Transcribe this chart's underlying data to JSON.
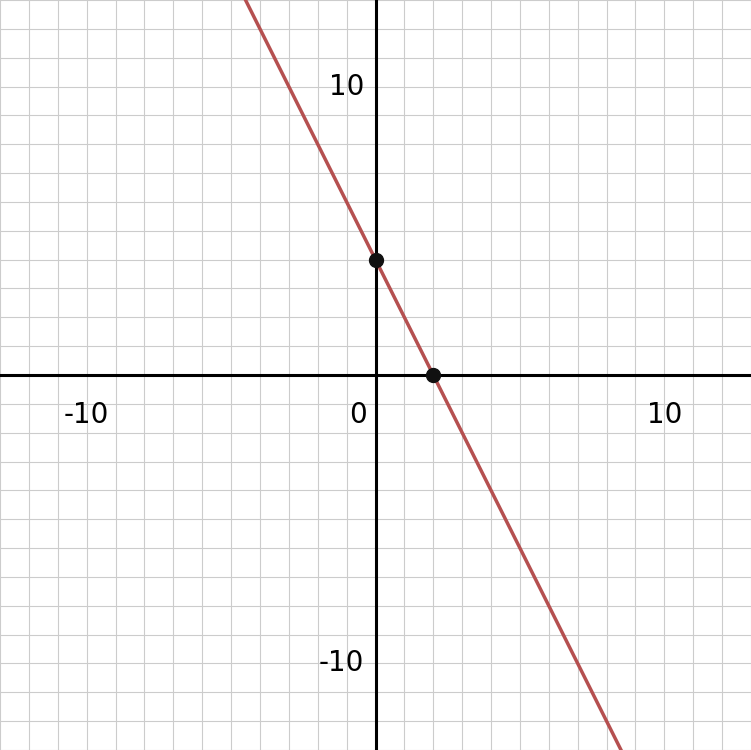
{
  "xlim": [
    -13,
    13
  ],
  "ylim": [
    -13,
    13
  ],
  "display_xlim": [
    -11.5,
    11.5
  ],
  "display_ylim": [
    -11.5,
    11.5
  ],
  "xticks_labeled": [
    -10,
    0,
    10
  ],
  "yticks_labeled": [
    -10,
    10
  ],
  "grid_step": 1,
  "line_slope": -2,
  "line_intercept": 4,
  "line_color": "#b55050",
  "line_width": 2.5,
  "points": [
    [
      0,
      4
    ],
    [
      2,
      0
    ]
  ],
  "point_color": "#111111",
  "point_size": 100,
  "background_color": "#ffffff",
  "axis_color": "#000000",
  "grid_color": "#cccccc",
  "tick_label_fontsize": 20,
  "axis_linewidth": 2.2
}
